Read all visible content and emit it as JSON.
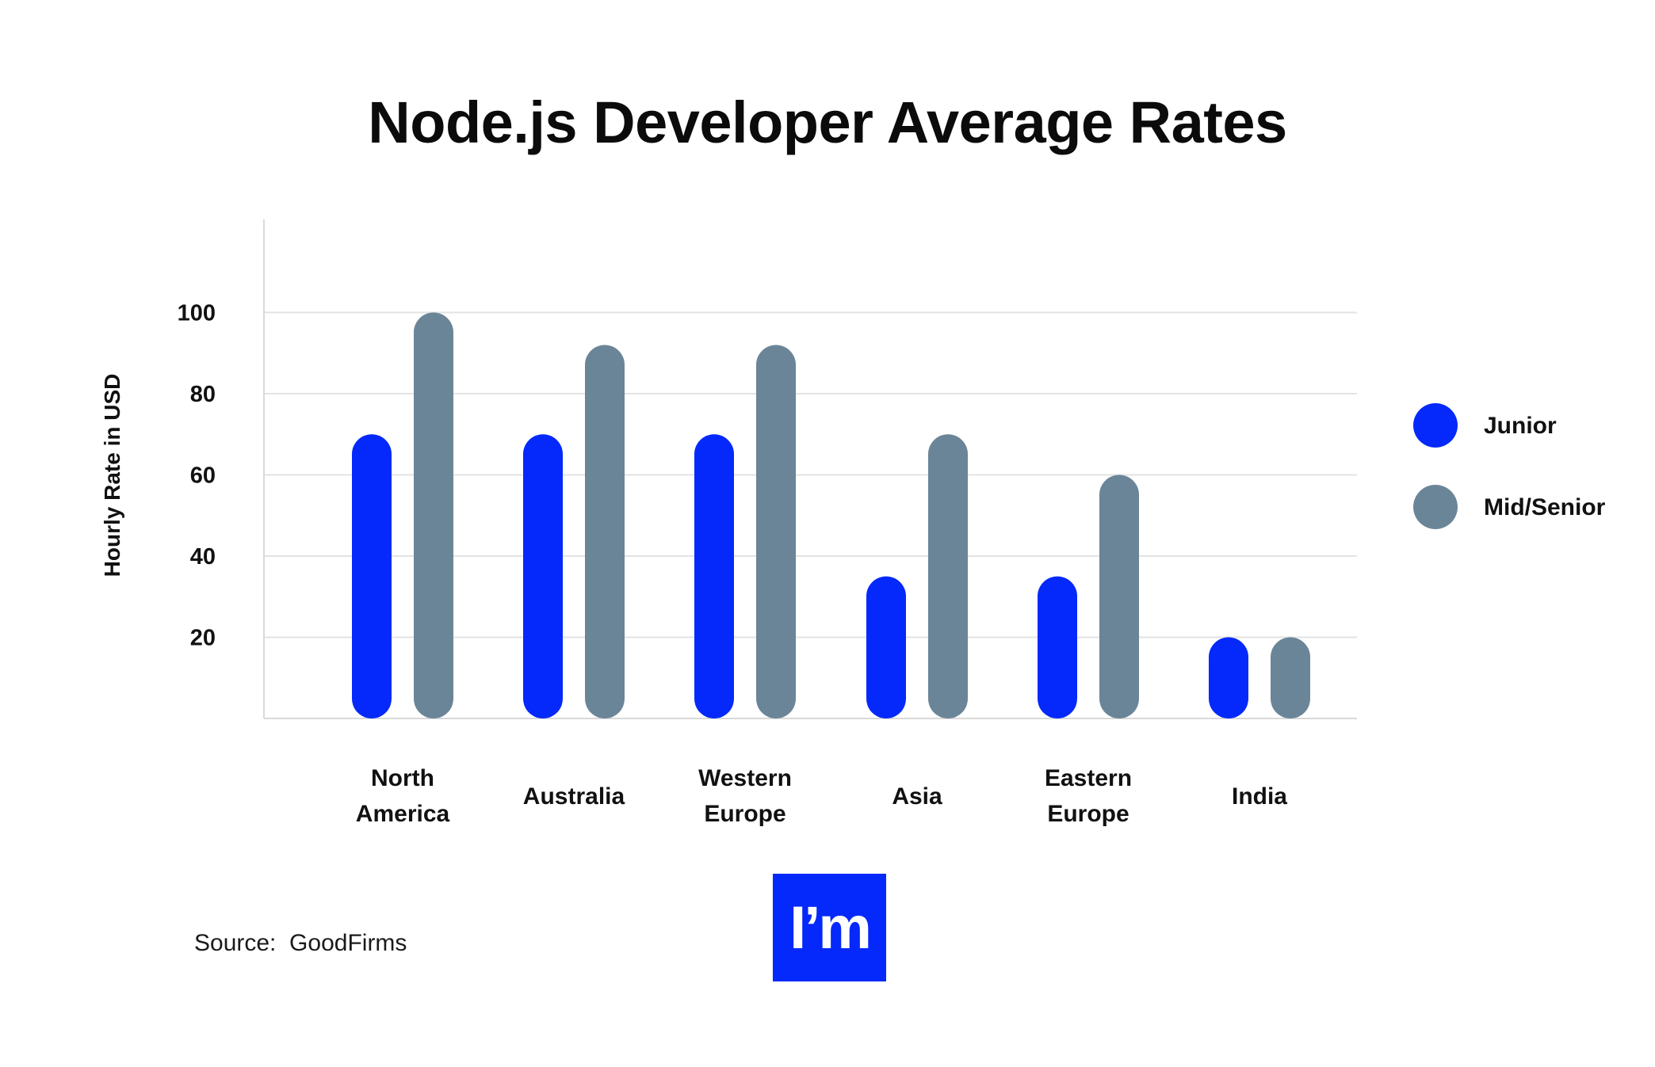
{
  "chart_data": {
    "type": "bar",
    "title": "Node.js Developer Average Rates",
    "ylabel": "Hourly Rate in USD",
    "xlabel": "",
    "ylim": [
      0,
      125
    ],
    "yticks": [
      20,
      40,
      60,
      80,
      100
    ],
    "grid": true,
    "legend_position": "right",
    "categories": [
      [
        "North",
        "America"
      ],
      [
        "Australia"
      ],
      [
        "Western",
        "Europe"
      ],
      [
        "Asia"
      ],
      [
        "Eastern",
        "Europe"
      ],
      [
        "India"
      ]
    ],
    "series": [
      {
        "name": "Junior",
        "color": "#0529fa",
        "values": [
          70,
          70,
          70,
          35,
          35,
          20
        ]
      },
      {
        "name": "Mid/Senior",
        "color": "#6b8598",
        "values": [
          100,
          92,
          92,
          70,
          60,
          20
        ]
      }
    ]
  },
  "source": "Source:  GoodFirms",
  "logo": {
    "text": "I’m",
    "color": "#0529fa"
  }
}
